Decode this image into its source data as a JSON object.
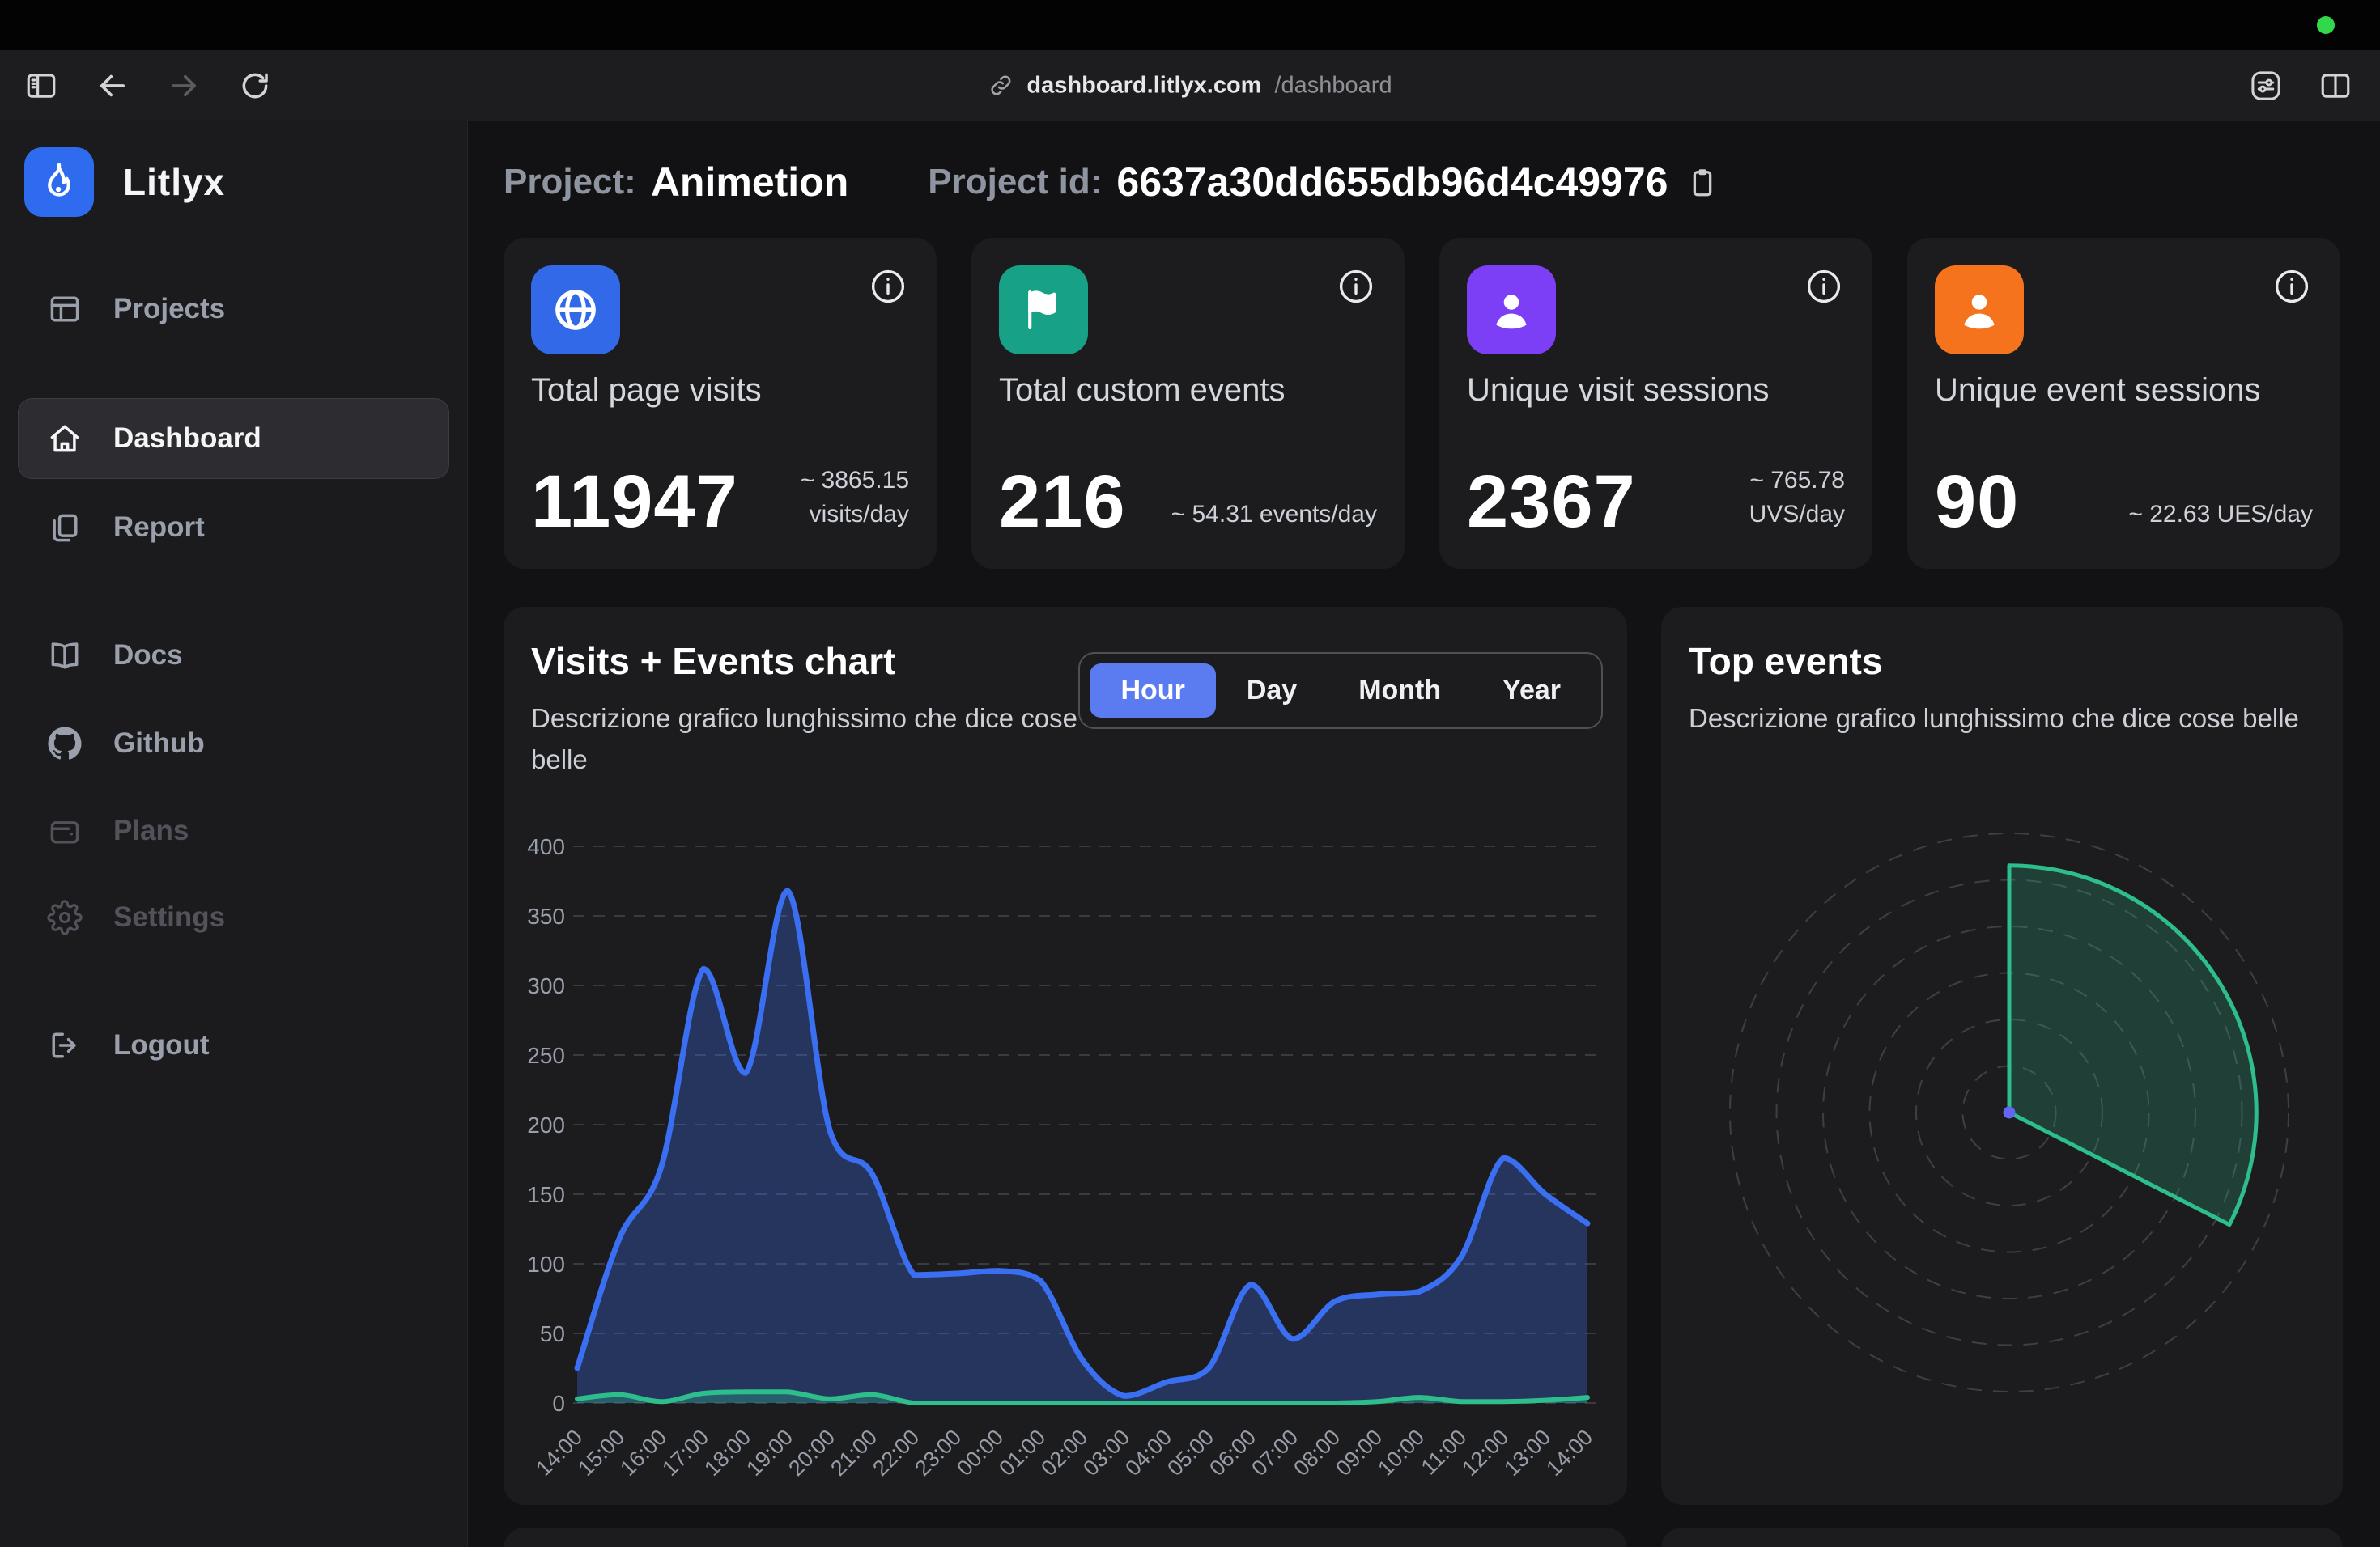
{
  "menubar": {
    "camera_dot_color": "#32d74b"
  },
  "browser": {
    "url_host": "dashboard.litlyx.com",
    "url_path": "/dashboard",
    "icons": {
      "panel": "sidebar-panel",
      "back": "arrow-left",
      "forward": "arrow-right",
      "reload": "reload",
      "link": "link",
      "page_settings": "sliders",
      "split_view": "split-view"
    }
  },
  "icons": {
    "info": "info",
    "clipboard": "clipboard",
    "logo": "flame"
  },
  "sidebar": {
    "brand": "Litlyx",
    "brand_color": "#2f6bef",
    "items": [
      {
        "label": "Projects",
        "icon": "layout",
        "state": "normal"
      },
      {
        "label": "Dashboard",
        "icon": "home",
        "state": "active"
      },
      {
        "label": "Report",
        "icon": "copy",
        "state": "normal"
      },
      {
        "label": "Docs",
        "icon": "book",
        "state": "normal"
      },
      {
        "label": "Github",
        "icon": "github",
        "state": "normal"
      },
      {
        "label": "Plans",
        "icon": "wallet",
        "state": "disabled"
      },
      {
        "label": "Settings",
        "icon": "gear",
        "state": "disabled"
      },
      {
        "label": "Logout",
        "icon": "logout",
        "state": "normal"
      }
    ]
  },
  "header": {
    "project_label": "Project:",
    "project_name": "Animetion",
    "project_id_label": "Project id:",
    "project_id": "6637a30dd655db96d4c49976"
  },
  "stats": [
    {
      "title": "Total page visits",
      "value": "11947",
      "sub": "~ 3865.15\nvisits/day",
      "icon": "globe",
      "color": "#3169e8",
      "info_icon": "info"
    },
    {
      "title": "Total custom events",
      "value": "216",
      "sub": "~ 54.31 events/day",
      "icon": "flag",
      "color": "#17a186",
      "info_icon": "info"
    },
    {
      "title": "Unique visit sessions",
      "value": "2367",
      "sub": "~ 765.78\nUVS/day",
      "icon": "user",
      "color": "#7d3ff5",
      "info_icon": "info"
    },
    {
      "title": "Unique event sessions",
      "value": "90",
      "sub": "~ 22.63 UES/day",
      "icon": "user",
      "color": "#f4731c",
      "info_icon": "info"
    }
  ],
  "chart_data": [
    {
      "type": "area",
      "title": "Visits + Events chart",
      "subtitle": "Descrizione grafico lunghissimo che dice cose belle",
      "controls": [
        "Hour",
        "Day",
        "Month",
        "Year"
      ],
      "active_control": "Hour",
      "active_control_color": "#5b7bf0",
      "x": [
        "14:00",
        "15:00",
        "16:00",
        "17:00",
        "18:00",
        "19:00",
        "20:00",
        "21:00",
        "22:00",
        "23:00",
        "00:00",
        "01:00",
        "02:00",
        "03:00",
        "04:00",
        "05:00",
        "06:00",
        "07:00",
        "08:00",
        "09:00",
        "10:00",
        "11:00",
        "12:00",
        "13:00",
        "14:00"
      ],
      "series": [
        {
          "name": "visits",
          "color": "#3a6ff2",
          "fill": "rgba(58,111,242,0.30)",
          "line_width": 7,
          "values": [
            25,
            118,
            170,
            312,
            237,
            368,
            196,
            165,
            92,
            93,
            95,
            88,
            31,
            5,
            15,
            25,
            85,
            46,
            73,
            78,
            80,
            105,
            176,
            150,
            129
          ]
        },
        {
          "name": "events",
          "color": "#2dbe8c",
          "fill": "rgba(45,190,140,0.30)",
          "line_width": 6,
          "values": [
            3,
            6,
            1,
            7,
            8,
            8,
            3,
            6,
            0,
            0,
            0,
            0,
            0,
            0,
            0,
            0,
            0,
            0,
            0,
            1,
            4,
            1,
            1,
            2,
            4
          ]
        }
      ],
      "ylim": [
        0,
        400
      ],
      "yticks": [
        400,
        350,
        300,
        250,
        200,
        150,
        100,
        50,
        0
      ],
      "grid": "horizontal-dashed",
      "legend": "none"
    },
    {
      "type": "polar-area",
      "title": "Top events",
      "subtitle": "Descrizione grafico lunghissimo che dice cose belle",
      "rings": 6,
      "ring_color": "#3e3f45",
      "center_dot_color": "#6366f1",
      "series": [
        {
          "name": "event",
          "start_deg": 90,
          "sweep_deg": 117,
          "direction": "clockwise",
          "radius_frac": 0.885,
          "color": "#2dbe8c",
          "fill": "rgba(45,190,140,0.22)"
        }
      ],
      "legend": "none"
    }
  ]
}
